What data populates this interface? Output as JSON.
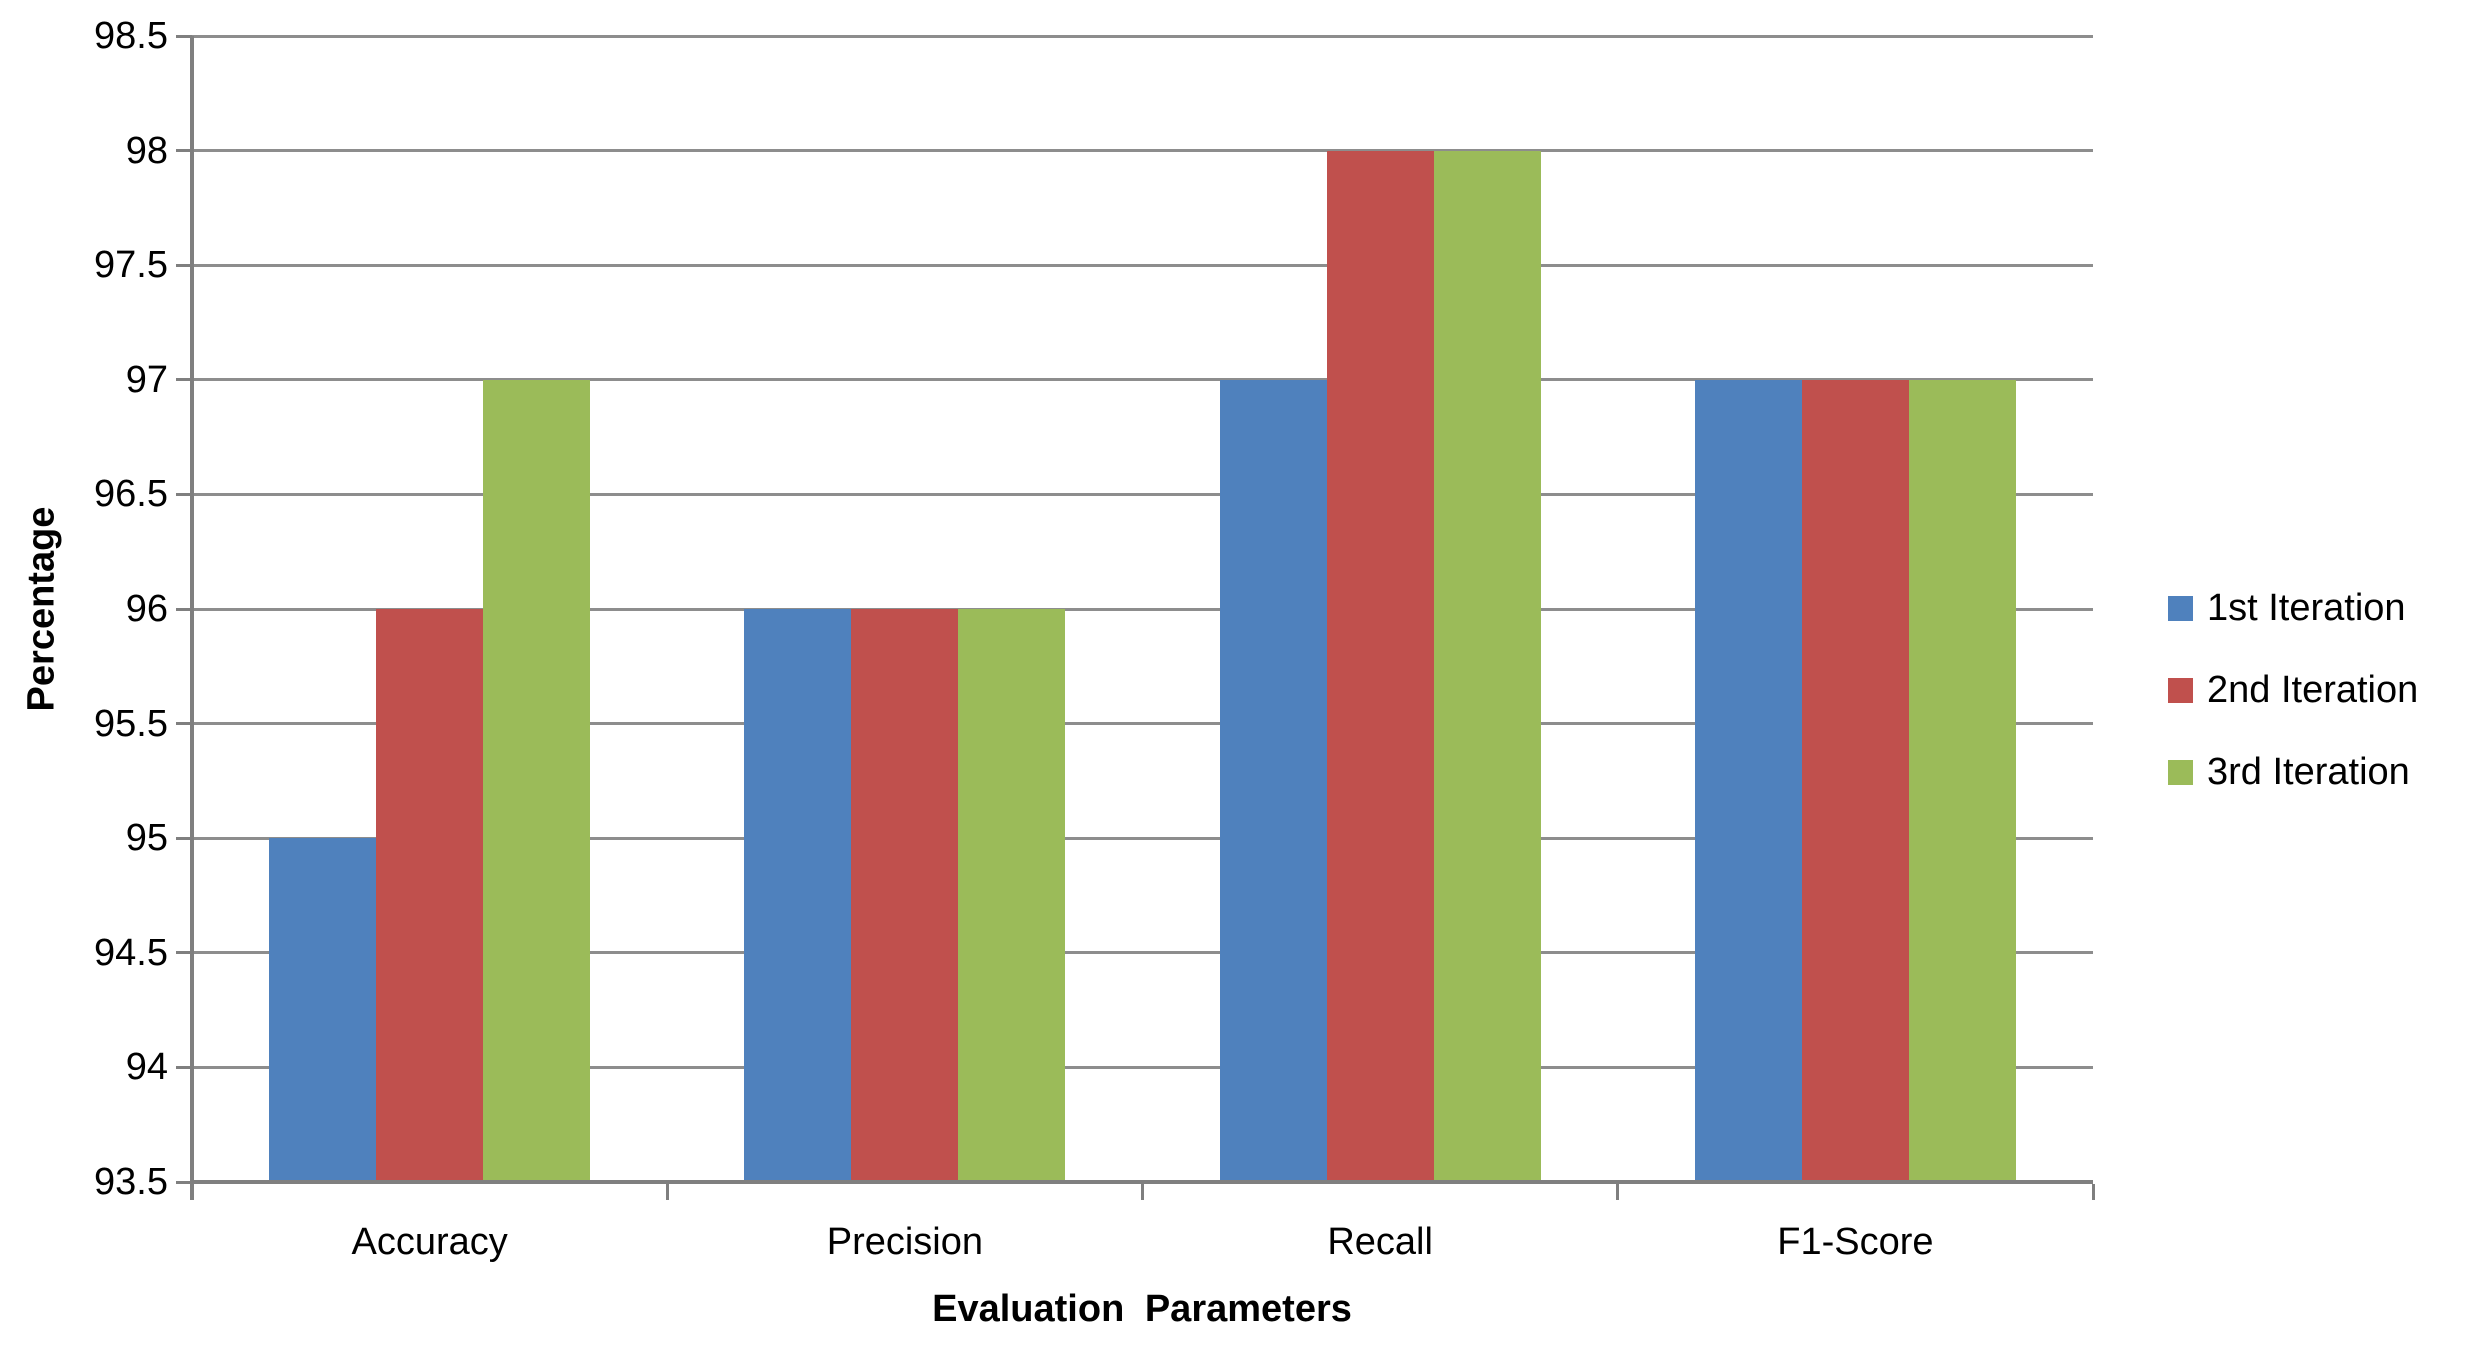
{
  "chart_data": {
    "type": "bar",
    "title": "",
    "categories": [
      "Accuracy",
      "Precision",
      "Recall",
      "F1-Score"
    ],
    "series": [
      {
        "name": "1st Iteration",
        "color": "#4F81BD",
        "values": [
          95,
          96,
          97,
          97
        ]
      },
      {
        "name": "2nd Iteration",
        "color": "#C0504D",
        "values": [
          96,
          96,
          98,
          97
        ]
      },
      {
        "name": "3rd Iteration",
        "color": "#9BBB59",
        "values": [
          97,
          96,
          98,
          97
        ]
      }
    ],
    "xlabel": "Evaluation Parameters",
    "ylabel": "Percentage",
    "ylim": [
      93.5,
      98.5
    ],
    "ytick_step": 0.5,
    "ytick_labels": [
      "98.5",
      "98",
      "97.5",
      "97",
      "96.5",
      "96",
      "95.5",
      "95",
      "94.5",
      "94",
      "93.5"
    ],
    "grid": true,
    "legend_position": "right"
  },
  "colors": {
    "gridline": "#8D8D8D",
    "axis": "#7F7F7F",
    "text": "#000000",
    "background": "#FFFFFF"
  }
}
